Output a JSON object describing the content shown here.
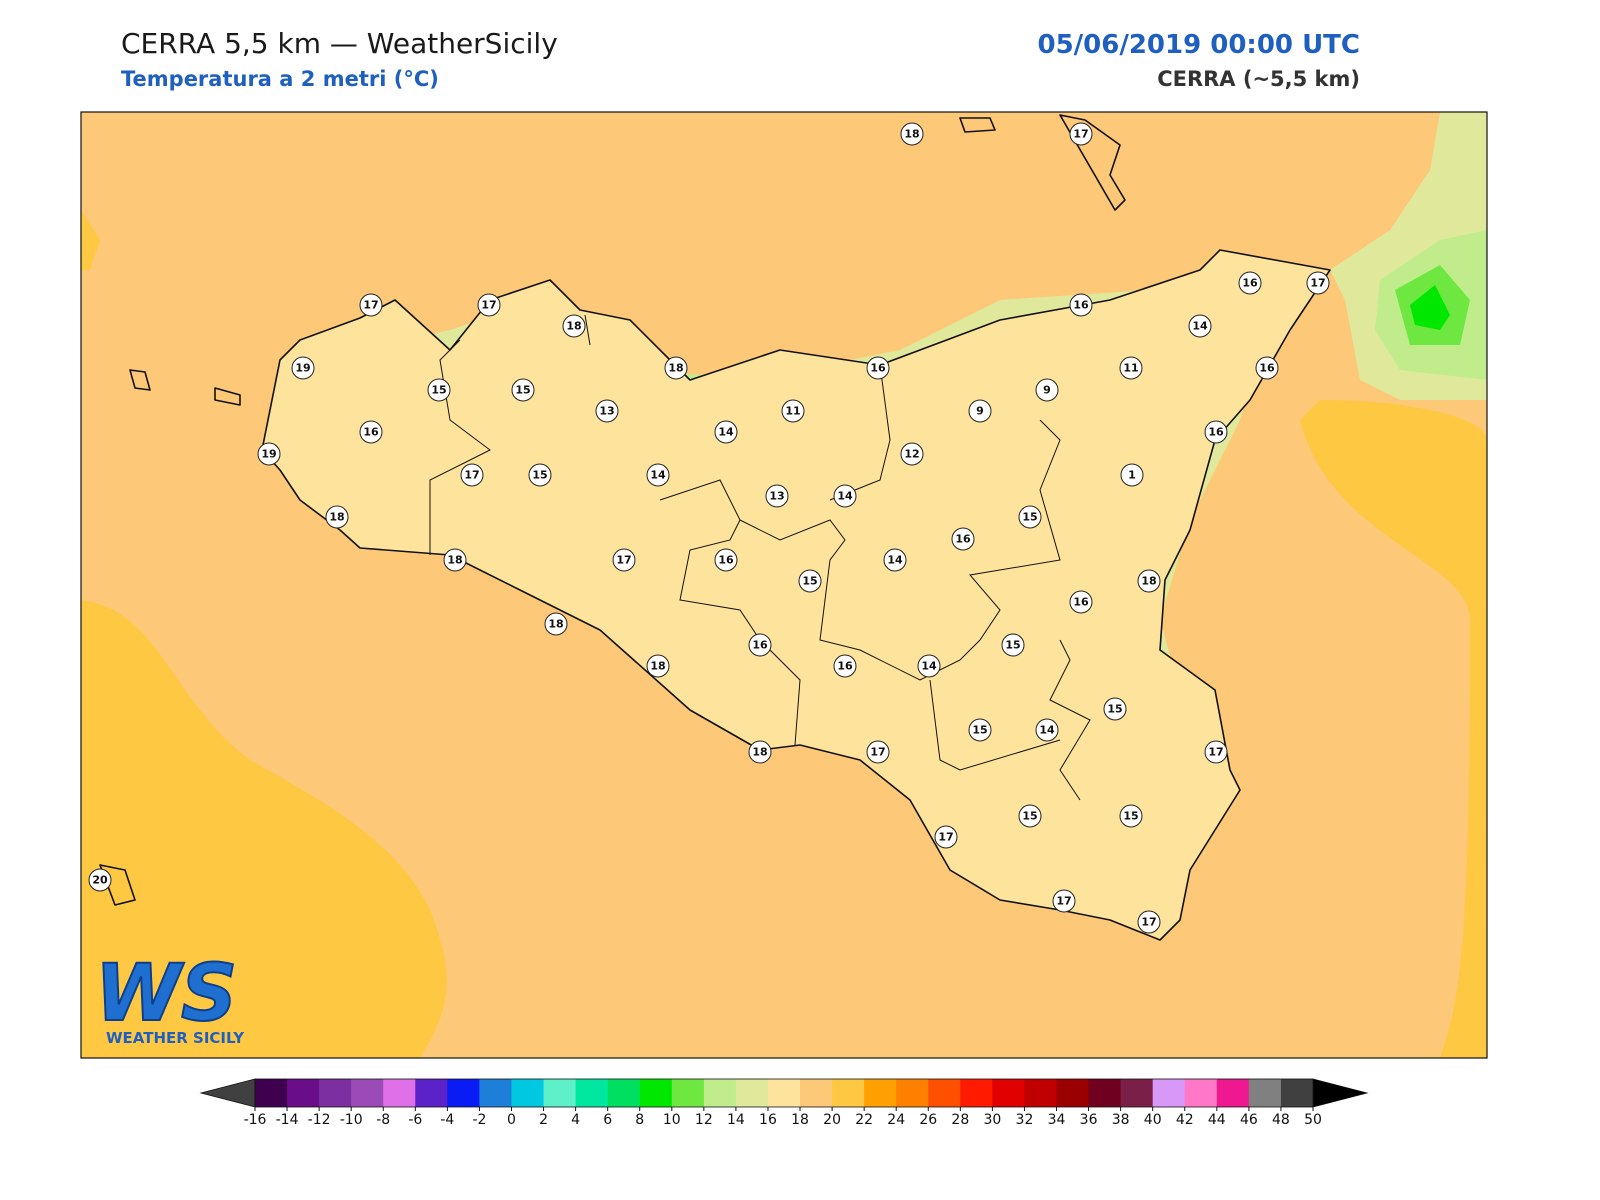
{
  "header": {
    "title": "CERRA 5,5 km — WeatherSicily",
    "subtitle": "Temperatura a 2 metri (°C)",
    "date": "05/06/2019 00:00 UTC",
    "model": "CERRA (~5,5 km)"
  },
  "stations": [
    18,
    17,
    17,
    17,
    18,
    19,
    18,
    16,
    16,
    16,
    17,
    14,
    11,
    16,
    15,
    15,
    13,
    11,
    9,
    9,
    16,
    14,
    16,
    19,
    12,
    17,
    15,
    14,
    1,
    13,
    14,
    18,
    15,
    16,
    18,
    17,
    16,
    14,
    15,
    18,
    16,
    18,
    15,
    16,
    18,
    16,
    14,
    15,
    15,
    14,
    18,
    17,
    17,
    15,
    15,
    17,
    20,
    17,
    17
  ],
  "colorbar": {
    "ticks": [
      -16,
      -14,
      -12,
      -10,
      -8,
      -6,
      -4,
      -2,
      0,
      2,
      4,
      6,
      8,
      10,
      12,
      14,
      16,
      18,
      20,
      22,
      24,
      26,
      28,
      30,
      32,
      34,
      36,
      38,
      40,
      42,
      44,
      46,
      48,
      50
    ],
    "colors": [
      "#3f0050",
      "#6a0d8a",
      "#7b2fa0",
      "#9b4bb5",
      "#e070e8",
      "#5a22c8",
      "#0a1cf5",
      "#1e7fd8",
      "#00c8e0",
      "#5ef0c8",
      "#00e8a0",
      "#00e060",
      "#00e800",
      "#6ee840",
      "#c0ec8c",
      "#e0e89c",
      "#fee39c",
      "#fdc878",
      "#ffc842",
      "#ffa000",
      "#ff8000",
      "#ff5000",
      "#ff1a00",
      "#e00000",
      "#c00000",
      "#9a0000",
      "#700020",
      "#7a2048",
      "#d898f8",
      "#ff78c8",
      "#f01890",
      "#808080",
      "#404040"
    ],
    "under": "#404040",
    "over": "#000000"
  },
  "logo": {
    "mark": "WS",
    "text": "WEATHER SICILY"
  }
}
